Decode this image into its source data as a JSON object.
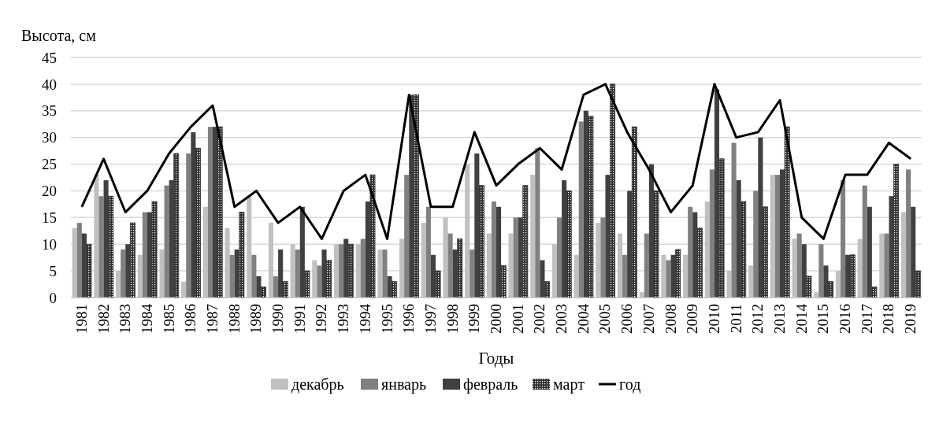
{
  "chart_data": {
    "type": "bar",
    "ylabel": "Высота, см",
    "xlabel": "Годы",
    "categories": [
      "1981",
      "1982",
      "1983",
      "1984",
      "1985",
      "1986",
      "1987",
      "1988",
      "1989",
      "1990",
      "1991",
      "1992",
      "1993",
      "1994",
      "1995",
      "1996",
      "1997",
      "1998",
      "1999",
      "2000",
      "2001",
      "2002",
      "2003",
      "2004",
      "2005",
      "2006",
      "2007",
      "2008",
      "2009",
      "2010",
      "2011",
      "2012",
      "2013",
      "2014",
      "2015",
      "2016",
      "2017",
      "2018",
      "2019"
    ],
    "series": [
      {
        "name": "декабрь",
        "color": "#c0c0c0",
        "values": [
          13,
          23,
          5,
          8,
          9,
          3,
          17,
          13,
          19,
          14,
          10,
          7,
          10,
          10,
          9,
          11,
          14,
          15,
          25,
          12,
          12,
          23,
          10,
          8,
          14,
          12,
          1,
          8,
          8,
          18,
          5,
          6,
          23,
          11,
          1,
          5,
          11,
          12,
          16
        ]
      },
      {
        "name": "январь",
        "color": "#808080",
        "values": [
          14,
          19,
          9,
          16,
          21,
          27,
          32,
          8,
          8,
          4,
          9,
          6,
          10,
          11,
          9,
          23,
          17,
          12,
          9,
          18,
          15,
          28,
          15,
          33,
          15,
          8,
          12,
          7,
          17,
          24,
          29,
          20,
          23,
          12,
          10,
          22,
          21,
          12,
          24
        ]
      },
      {
        "name": "февраль",
        "color": "#404040",
        "values": [
          12,
          22,
          10,
          16,
          22,
          31,
          32,
          9,
          4,
          9,
          17,
          9,
          11,
          18,
          4,
          38,
          8,
          9,
          27,
          17,
          15,
          7,
          22,
          35,
          23,
          20,
          25,
          8,
          16,
          39,
          22,
          30,
          24,
          10,
          6,
          8,
          17,
          19,
          17
        ]
      },
      {
        "name": "март",
        "color": "#303030",
        "values": [
          10,
          19,
          14,
          18,
          27,
          28,
          32,
          16,
          2,
          3,
          5,
          7,
          10,
          23,
          3,
          38,
          5,
          11,
          21,
          6,
          21,
          3,
          20,
          34,
          40,
          32,
          20,
          9,
          13,
          26,
          18,
          17,
          32,
          4,
          3,
          8,
          2,
          25,
          5
        ]
      },
      {
        "name": "год",
        "type": "line",
        "color": "#000000",
        "values": [
          17,
          26,
          16,
          20,
          27,
          32,
          36,
          17,
          20,
          14,
          17,
          11,
          20,
          23,
          11,
          38,
          17,
          17,
          31,
          21,
          25,
          28,
          24,
          38,
          40,
          31,
          24,
          16,
          21,
          40,
          30,
          31,
          37,
          15,
          11,
          23,
          23,
          29,
          26
        ]
      }
    ],
    "ylim": [
      0,
      45
    ],
    "yticks": [
      0,
      5,
      10,
      15,
      20,
      25,
      30,
      35,
      40,
      45
    ],
    "grid": "y",
    "legend": "bottom"
  }
}
